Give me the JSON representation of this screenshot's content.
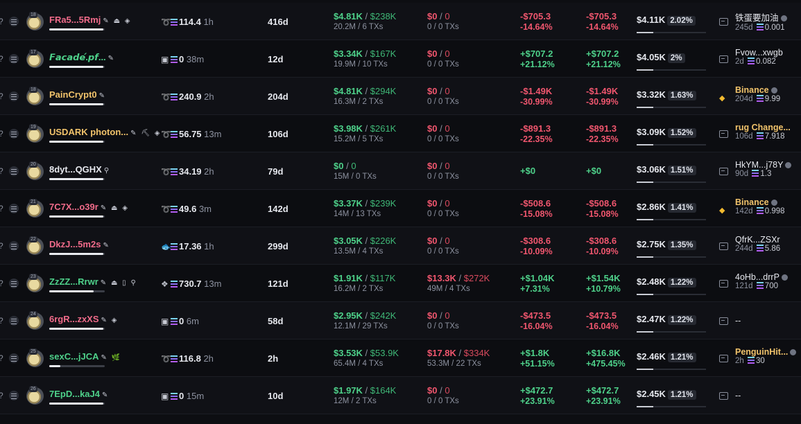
{
  "rows": [
    {
      "lvl": "18",
      "name": "FRa5...5Rmj",
      "name_color": "#f06b8a",
      "badges": "✎ ⏏ ◈",
      "bar": 0.98,
      "platform": "jupiter",
      "balance": "114.4",
      "bal_time": "1h",
      "age": "416d",
      "vol_main": "$4.81K",
      "vol_total": "$238K",
      "vol_sub": "20.2M / 6 TXs",
      "pnl_main": "$0",
      "pnl_total": "0",
      "pnl_sub": "0 / 0 TXs",
      "pnl_color": "red",
      "r1_main": "-$705.3",
      "r1_pct": "-14.64%",
      "r2_main": "-$705.3",
      "r2_pct": "-14.64%",
      "r_color": "red",
      "value": "$4.11K",
      "share": "2.02%",
      "src_type": "link",
      "src_name": "铁蛋要加油",
      "src_yellow": false,
      "src_coin": true,
      "src_age": "245d",
      "src_bal": "0.001"
    },
    {
      "lvl": "17",
      "name": "𝙁𝙖𝙘𝙖𝙙𝙚́.𝙥𝙛...",
      "name_color": "#4ed18a",
      "badges": "✎",
      "bar": 0.98,
      "platform": "pumpfun",
      "balance": "0",
      "bal_time": "38m",
      "age": "12d",
      "vol_main": "$3.34K",
      "vol_total": "$167K",
      "vol_sub": "19.9M / 10 TXs",
      "pnl_main": "$0",
      "pnl_total": "0",
      "pnl_sub": "0 / 0 TXs",
      "pnl_color": "red",
      "r1_main": "+$707.2",
      "r1_pct": "+21.12%",
      "r2_main": "+$707.2",
      "r2_pct": "+21.12%",
      "r_color": "green",
      "value": "$4.05K",
      "share": "2%",
      "src_type": "link",
      "src_name": "Fvow...xwgb",
      "src_yellow": false,
      "src_coin": false,
      "src_age": "2d",
      "src_bal": "0.082"
    },
    {
      "lvl": "18",
      "name": "PainCrypt0",
      "name_color": "#f1c36b",
      "badges": "✎",
      "bar": 0.98,
      "platform": "jupiter",
      "balance": "240.9",
      "bal_time": "2h",
      "age": "204d",
      "vol_main": "$4.81K",
      "vol_total": "$294K",
      "vol_sub": "16.3M / 2 TXs",
      "pnl_main": "$0",
      "pnl_total": "0",
      "pnl_sub": "0 / 0 TXs",
      "pnl_color": "red",
      "r1_main": "-$1.49K",
      "r1_pct": "-30.99%",
      "r2_main": "-$1.49K",
      "r2_pct": "-30.99%",
      "r_color": "red",
      "value": "$3.32K",
      "share": "1.63%",
      "src_type": "binance",
      "src_name": "Binance",
      "src_yellow": true,
      "src_coin": true,
      "src_age": "204d",
      "src_bal": "9.99"
    },
    {
      "lvl": "19",
      "name": "USDARK photon...",
      "name_color": "#f1c36b",
      "badges": "✎ ⛏ ◈",
      "bar": 0.98,
      "platform": "jupiter",
      "balance": "56.75",
      "bal_time": "13m",
      "age": "106d",
      "vol_main": "$3.98K",
      "vol_total": "$261K",
      "vol_sub": "15.2M / 5 TXs",
      "pnl_main": "$0",
      "pnl_total": "0",
      "pnl_sub": "0 / 0 TXs",
      "pnl_color": "red",
      "r1_main": "-$891.3",
      "r1_pct": "-22.35%",
      "r2_main": "-$891.3",
      "r2_pct": "-22.35%",
      "r_color": "red",
      "value": "$3.09K",
      "share": "1.52%",
      "src_type": "link",
      "src_name": "rug Change...",
      "src_yellow": true,
      "src_coin": false,
      "src_age": "106d",
      "src_bal": "7.918"
    },
    {
      "lvl": "20",
      "name": "8dyt...QGHX",
      "name_color": "#e6e8ee",
      "badges": "⚲",
      "bar": 0.98,
      "platform": "jupiter",
      "balance": "34.19",
      "bal_time": "2h",
      "age": "79d",
      "vol_main": "$0",
      "vol_total": "0",
      "vol_sub": "15M / 0 TXs",
      "pnl_main": "$0",
      "pnl_total": "0",
      "pnl_sub": "0 / 0 TXs",
      "pnl_color": "red",
      "r1_main": "+$0",
      "r1_pct": "",
      "r2_main": "+$0",
      "r2_pct": "",
      "r_color": "green",
      "value": "$3.06K",
      "share": "1.51%",
      "src_type": "link",
      "src_name": "HkYM...j78Y",
      "src_yellow": false,
      "src_coin": true,
      "src_age": "90d",
      "src_bal": "1.3"
    },
    {
      "lvl": "21",
      "name": "7C7X...o39r",
      "name_color": "#f06b8a",
      "badges": "✎ ⏏ ◈",
      "bar": 0.98,
      "platform": "jupiter",
      "balance": "49.6",
      "bal_time": "3m",
      "age": "142d",
      "vol_main": "$3.37K",
      "vol_total": "$239K",
      "vol_sub": "14M / 13 TXs",
      "pnl_main": "$0",
      "pnl_total": "0",
      "pnl_sub": "0 / 0 TXs",
      "pnl_color": "red",
      "r1_main": "-$508.6",
      "r1_pct": "-15.08%",
      "r2_main": "-$508.6",
      "r2_pct": "-15.08%",
      "r_color": "red",
      "value": "$2.86K",
      "share": "1.41%",
      "src_type": "binance",
      "src_name": "Binance",
      "src_yellow": true,
      "src_coin": true,
      "src_age": "142d",
      "src_bal": "0.998"
    },
    {
      "lvl": "22",
      "name": "DkzJ...5m2s",
      "name_color": "#f06b8a",
      "badges": "✎",
      "bar": 0.98,
      "platform": "fish",
      "balance": "17.36",
      "bal_time": "1h",
      "age": "299d",
      "vol_main": "$3.05K",
      "vol_total": "$226K",
      "vol_sub": "13.5M / 4 TXs",
      "pnl_main": "$0",
      "pnl_total": "0",
      "pnl_sub": "0 / 0 TXs",
      "pnl_color": "red",
      "r1_main": "-$308.6",
      "r1_pct": "-10.09%",
      "r2_main": "-$308.6",
      "r2_pct": "-10.09%",
      "r_color": "red",
      "value": "$2.75K",
      "share": "1.35%",
      "src_type": "link",
      "src_name": "QfrK...ZSXr",
      "src_yellow": false,
      "src_coin": false,
      "src_age": "244d",
      "src_bal": "5.86"
    },
    {
      "lvl": "23",
      "name": "ZzZZ...Rrwr",
      "name_color": "#4ed18a",
      "badges": "✎ ⏏ ▯ ⚲",
      "bar": 0.8,
      "platform": "raydium",
      "balance": "730.7",
      "bal_time": "13m",
      "age": "121d",
      "vol_main": "$1.91K",
      "vol_total": "$117K",
      "vol_sub": "16.2M / 2 TXs",
      "pnl_main": "$13.3K",
      "pnl_total": "$272K",
      "pnl_sub": "49M / 4 TXs",
      "pnl_color": "red",
      "r1_main": "+$1.04K",
      "r1_pct": "+7.31%",
      "r2_main": "+$1.54K",
      "r2_pct": "+10.79%",
      "r_color": "green",
      "value": "$2.48K",
      "share": "1.22%",
      "src_type": "link",
      "src_name": "4oHb...drrP",
      "src_yellow": false,
      "src_coin": true,
      "src_age": "121d",
      "src_bal": "700"
    },
    {
      "lvl": "24",
      "name": "6rgR...zxXS",
      "name_color": "#f06b8a",
      "badges": "✎ ◈",
      "bar": 0.98,
      "platform": "pumpfun",
      "balance": "0",
      "bal_time": "6m",
      "age": "58d",
      "vol_main": "$2.95K",
      "vol_total": "$242K",
      "vol_sub": "12.1M / 29 TXs",
      "pnl_main": "$0",
      "pnl_total": "0",
      "pnl_sub": "0 / 0 TXs",
      "pnl_color": "red",
      "r1_main": "-$473.5",
      "r1_pct": "-16.04%",
      "r2_main": "-$473.5",
      "r2_pct": "-16.04%",
      "r_color": "red",
      "value": "$2.47K",
      "share": "1.22%",
      "src_type": "link",
      "src_name": "--",
      "src_yellow": false,
      "src_coin": false,
      "src_age": "",
      "src_bal": ""
    },
    {
      "lvl": "25",
      "name": "sexC...jJCA",
      "name_color": "#4ed18a",
      "badges": "✎ 🌿",
      "bar": 0.2,
      "platform": "jupiter",
      "balance": "116.8",
      "bal_time": "2h",
      "age": "2h",
      "vol_main": "$3.53K",
      "vol_total": "$53.9K",
      "vol_sub": "65.4M / 4 TXs",
      "pnl_main": "$17.8K",
      "pnl_total": "$334K",
      "pnl_sub": "53.3M / 22 TXs",
      "pnl_color": "red",
      "r1_main": "+$1.8K",
      "r1_pct": "+51.15%",
      "r2_main": "+$16.8K",
      "r2_pct": "+475.45%",
      "r_color": "green",
      "value": "$2.46K",
      "share": "1.21%",
      "src_type": "link",
      "src_name": "PenguinHit...",
      "src_yellow": true,
      "src_coin": true,
      "src_age": "2h",
      "src_bal": "30"
    },
    {
      "lvl": "26",
      "name": "7EpD...kaJ4",
      "name_color": "#4ed18a",
      "badges": "✎",
      "bar": 0.98,
      "platform": "pumpfun",
      "balance": "0",
      "bal_time": "15m",
      "age": "10d",
      "vol_main": "$1.97K",
      "vol_total": "$164K",
      "vol_sub": "12M / 2 TXs",
      "pnl_main": "$0",
      "pnl_total": "0",
      "pnl_sub": "0 / 0 TXs",
      "pnl_color": "red",
      "r1_main": "+$472.7",
      "r1_pct": "+23.91%",
      "r2_main": "+$472.7",
      "r2_pct": "+23.91%",
      "r_color": "green",
      "value": "$2.45K",
      "share": "1.21%",
      "src_type": "link",
      "src_name": "--",
      "src_yellow": false,
      "src_coin": false,
      "src_age": "",
      "src_bal": ""
    }
  ],
  "icons": {
    "question": "?",
    "menu": "list-icon",
    "sol": "solana-icon",
    "link": "transfer-icon",
    "binance": "binance-icon"
  }
}
